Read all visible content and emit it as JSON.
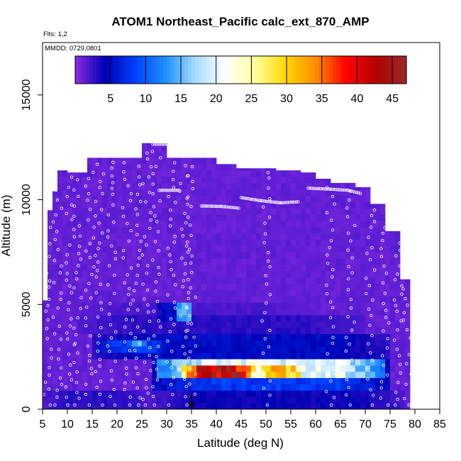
{
  "chart_data": {
    "type": "heatmap",
    "title": "ATOM1 Northeast_Pacific calc_ext_870_AMP",
    "annotations": [
      "Flts: 1,2",
      "MMDD: 0729,0801"
    ],
    "xlabel": "Latitude (deg N)",
    "ylabel": "Altitude (m)",
    "xlim": [
      5,
      85
    ],
    "ylim": [
      0,
      17500
    ],
    "x_ticks": [
      "5",
      "10",
      "15",
      "20",
      "25",
      "30",
      "35",
      "40",
      "45",
      "50",
      "55",
      "60",
      "65",
      "70",
      "75",
      "80",
      "85"
    ],
    "y_ticks": [
      "0",
      "5000",
      "10000",
      "15000"
    ],
    "colorbar": {
      "ticks": [
        "5",
        "10",
        "15",
        "20",
        "25",
        "30",
        "35",
        "40",
        "45"
      ],
      "range": [
        0,
        47
      ],
      "colors": [
        "#8a2be2",
        "#0000b4",
        "#0040ff",
        "#1e90ff",
        "#a8dcff",
        "#ffffff",
        "#ffff9a",
        "#ffd700",
        "#ff8c00",
        "#ff0000",
        "#b00000",
        "#9a2a2a"
      ]
    },
    "arrow_marker_latitude": 35,
    "profile_columns": [
      {
        "lat": 5.5,
        "top": 5200
      },
      {
        "lat": 6.5,
        "top": 9500
      },
      {
        "lat": 7.5,
        "top": 10400
      },
      {
        "lat": 10.0,
        "top": 11400
      },
      {
        "lat": 14.0,
        "top": 11300
      },
      {
        "lat": 17.0,
        "top": 12000
      },
      {
        "lat": 22.0,
        "top": 12000
      },
      {
        "lat": 25.0,
        "top": 12000
      },
      {
        "lat": 27.0,
        "top": 12700
      },
      {
        "lat": 30.0,
        "top": 12700
      },
      {
        "lat": 33.0,
        "top": 12000
      },
      {
        "lat": 40.0,
        "top": 12000
      },
      {
        "lat": 44.0,
        "top": 11700
      },
      {
        "lat": 47.0,
        "top": 11500
      },
      {
        "lat": 52.0,
        "top": 11500
      },
      {
        "lat": 57.0,
        "top": 11400
      },
      {
        "lat": 60.0,
        "top": 11300
      },
      {
        "lat": 63.0,
        "top": 11000
      },
      {
        "lat": 68.0,
        "top": 10800
      },
      {
        "lat": 71.0,
        "top": 10600
      },
      {
        "lat": 72.0,
        "top": 9800
      },
      {
        "lat": 74.0,
        "top": 9800
      },
      {
        "lat": 77.0,
        "top": 8500
      },
      {
        "lat": 78.5,
        "top": 6200
      },
      {
        "lat": 79.0,
        "top": 0
      }
    ],
    "features": [
      {
        "lat": [
          27,
          78
        ],
        "alt": [
          0,
          1000
        ],
        "value": 4
      },
      {
        "lat": [
          5,
          27
        ],
        "alt": [
          0,
          1000
        ],
        "value": 3
      },
      {
        "lat": [
          27,
          75
        ],
        "alt": [
          1000,
          2500
        ],
        "value": 8
      },
      {
        "lat": [
          15,
          75
        ],
        "alt": [
          2500,
          3500
        ],
        "value": 5
      },
      {
        "lat": [
          12,
          70
        ],
        "alt": [
          3500,
          4600
        ],
        "value": 3
      },
      {
        "lat": [
          10,
          60
        ],
        "alt": [
          4600,
          5200
        ],
        "value": 2
      },
      {
        "lat": [
          28,
          34
        ],
        "alt": [
          4200,
          5200
        ],
        "value": 5
      },
      {
        "lat": [
          32,
          35
        ],
        "alt": [
          4200,
          5200
        ],
        "value": 14
      },
      {
        "lat": [
          22,
          26
        ],
        "alt": [
          2900,
          3300
        ],
        "value": 13
      },
      {
        "lat": [
          16,
          30
        ],
        "alt": [
          2800,
          3400
        ],
        "value": 8
      },
      {
        "lat": [
          28,
          74
        ],
        "alt": [
          1400,
          2300
        ],
        "value": 20
      },
      {
        "lat": [
          33,
          48
        ],
        "alt": [
          1500,
          2000
        ],
        "value": 42
      },
      {
        "lat": [
          48,
          58
        ],
        "alt": [
          1500,
          2000
        ],
        "value": 30
      }
    ],
    "flight_track_segments": [
      [
        {
          "lat": 27.2,
          "alt": 12650
        },
        {
          "lat": 32.8,
          "alt": 12650
        }
      ],
      [
        {
          "lat": 28.5,
          "alt": 10450
        },
        {
          "lat": 32.5,
          "alt": 10450
        }
      ],
      [
        {
          "lat": 37.0,
          "alt": 9700
        },
        {
          "lat": 41.0,
          "alt": 9680
        },
        {
          "lat": 44.5,
          "alt": 9600
        }
      ],
      [
        {
          "lat": 45.0,
          "alt": 10100
        },
        {
          "lat": 49.0,
          "alt": 9950
        },
        {
          "lat": 53.0,
          "alt": 9850
        },
        {
          "lat": 56.5,
          "alt": 9900
        }
      ],
      [
        {
          "lat": 58.5,
          "alt": 10550
        },
        {
          "lat": 63.0,
          "alt": 10500
        },
        {
          "lat": 66.5,
          "alt": 10450
        },
        {
          "lat": 69.0,
          "alt": 10300
        }
      ],
      [
        {
          "lat": 73.5,
          "alt": 9950
        },
        {
          "lat": 76.5,
          "alt": 9700
        }
      ]
    ]
  }
}
